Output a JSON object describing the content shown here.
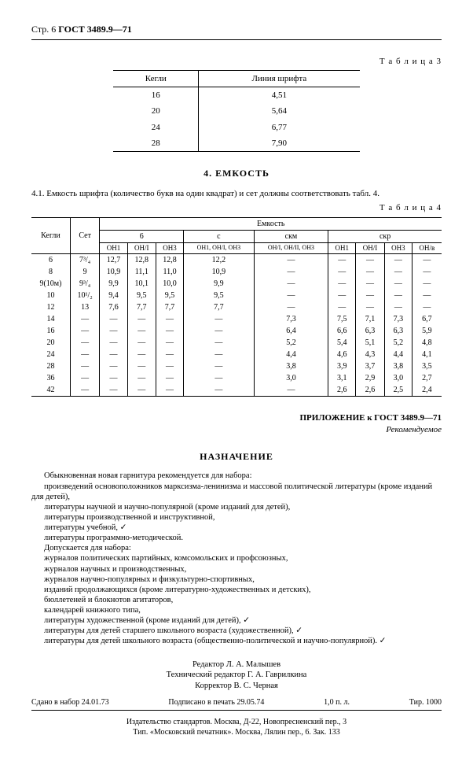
{
  "header": {
    "page": "Стр. 6",
    "code": "ГОСТ 3489.9—71"
  },
  "table3": {
    "label": "Т а б л и ц а 3",
    "h1": "Кегли",
    "h2": "Линия шрифта",
    "rows": [
      {
        "k": "16",
        "v": "4,51"
      },
      {
        "k": "20",
        "v": "5,64"
      },
      {
        "k": "24",
        "v": "6,77"
      },
      {
        "k": "28",
        "v": "7,90"
      }
    ]
  },
  "section4": {
    "title": "4. ЕМКОСТЬ",
    "text": "4.1. Емкость шрифта (количество букв на один квадрат) и сет должны соответствовать табл. 4.",
    "label": "Т а б л и ц а 4"
  },
  "table4": {
    "h_kegli": "Кегли",
    "h_set": "Сет",
    "h_emk": "Емкость",
    "h_6": "6",
    "h_c": "с",
    "h_skm": "скм",
    "h_skr": "скр",
    "sub": {
      "on1": "ОН1",
      "onl": "ОН/I",
      "on3": "ОН3",
      "on1_on3": "ОН1, ОН/I, ОН3",
      "onl_on3": "ОН/I, ОН/II, ОН3",
      "onv": "ОН/в"
    },
    "rows": [
      {
        "k": "6",
        "s": "7³/₄",
        "a": "12,7",
        "b": "12,8",
        "c": "12,8",
        "d": "12,2",
        "e": "—",
        "f": "—",
        "g": "—",
        "h": "—",
        "i": "—",
        "j": "—"
      },
      {
        "k": "8",
        "s": "9",
        "a": "10,9",
        "b": "11,1",
        "c": "11,0",
        "d": "10,9",
        "e": "—",
        "f": "—",
        "g": "—",
        "h": "—",
        "i": "—",
        "j": "—"
      },
      {
        "k": "9(10м)",
        "s": "9³/₄",
        "a": "9,9",
        "b": "10,1",
        "c": "10,0",
        "d": "9,9",
        "e": "—",
        "f": "—",
        "g": "—",
        "h": "—",
        "i": "—",
        "j": "—"
      },
      {
        "k": "10",
        "s": "10¹/₂",
        "a": "9,4",
        "b": "9,5",
        "c": "9,5",
        "d": "9,5",
        "e": "—",
        "f": "—",
        "g": "—",
        "h": "—",
        "i": "—",
        "j": "—"
      },
      {
        "k": "12",
        "s": "13",
        "a": "7,6",
        "b": "7,7",
        "c": "7,7",
        "d": "7,7",
        "e": "—",
        "f": "—",
        "g": "—",
        "h": "—",
        "i": "—",
        "j": "—"
      },
      {
        "k": "14",
        "s": "—",
        "a": "—",
        "b": "—",
        "c": "—",
        "d": "—",
        "e": "7,3",
        "f": "7,5",
        "g": "7,1",
        "h": "7,3",
        "i": "6,7",
        "j": ""
      },
      {
        "k": "16",
        "s": "—",
        "a": "—",
        "b": "—",
        "c": "—",
        "d": "—",
        "e": "6,4",
        "f": "6,6",
        "g": "6,3",
        "h": "6,3",
        "i": "5,9",
        "j": ""
      },
      {
        "k": "20",
        "s": "—",
        "a": "—",
        "b": "—",
        "c": "—",
        "d": "—",
        "e": "5,2",
        "f": "5,4",
        "g": "5,1",
        "h": "5,2",
        "i": "4,8",
        "j": ""
      },
      {
        "k": "24",
        "s": "—",
        "a": "—",
        "b": "—",
        "c": "—",
        "d": "—",
        "e": "4,4",
        "f": "4,6",
        "g": "4,3",
        "h": "4,4",
        "i": "4,1",
        "j": ""
      },
      {
        "k": "28",
        "s": "—",
        "a": "—",
        "b": "—",
        "c": "—",
        "d": "—",
        "e": "3,8",
        "f": "3,9",
        "g": "3,7",
        "h": "3,8",
        "i": "3,5",
        "j": ""
      },
      {
        "k": "36",
        "s": "—",
        "a": "—",
        "b": "—",
        "c": "—",
        "d": "—",
        "e": "3,0",
        "f": "3,1",
        "g": "2,9",
        "h": "3,0",
        "i": "2,7",
        "j": ""
      },
      {
        "k": "42",
        "s": "—",
        "a": "—",
        "b": "—",
        "c": "—",
        "d": "—",
        "e": "—",
        "f": "2,6",
        "g": "2,6",
        "h": "2,5",
        "i": "2,4",
        "j": ""
      }
    ]
  },
  "appendix": {
    "line1": "ПРИЛОЖЕНИЕ к ГОСТ 3489.9—71",
    "line2": "Рекомендуемое"
  },
  "назначение": {
    "title": "НАЗНАЧЕНИЕ",
    "lines": [
      "Обыкновенная новая гарнитура рекомендуется для набора:",
      "произведений основоположников марксизма-ленинизма и массовой политической литературы (кроме изданий для детей),",
      "литературы научной и научно-популярной (кроме изданий для детей),",
      "литературы производственной и инструктивной,",
      "литературы учебной,  ✓",
      "литературы программно-методической.",
      "Допускается для набора:",
      "журналов политических партийных, комсомольских и профсоюзных,",
      "журналов научных и производственных,",
      "журналов научно-популярных и физкультурно-спортивных,",
      "изданий продолжающихся (кроме литературно-художественных и детских),",
      "бюллетеней и блокнотов агитаторов,",
      "календарей книжного типа,",
      "литературы художественной (кроме изданий для детей),  ✓",
      "литературы для детей старшего школьного возраста (художественной),  ✓",
      "литературы для детей школьного возраста (общественно-политической и научно-популярной).  ✓"
    ]
  },
  "credits": {
    "editor": "Редактор Л. А. Малышев",
    "tech_editor": "Технический редактор Г. А. Гаврилкина",
    "corrector": "Корректор В. С. Черная"
  },
  "footer": {
    "l1a": "Сдано в набор 24.01.73",
    "l1b": "Подписано в печать 29.05.74",
    "l1c": "1,0 п. л.",
    "l1d": "Тир. 1000",
    "l2": "Издательство стандартов. Москва, Д-22, Новопресненский пер., 3",
    "l3": "Тип. «Московский печатник». Москва, Лялин пер., 6. Зак. 133"
  }
}
